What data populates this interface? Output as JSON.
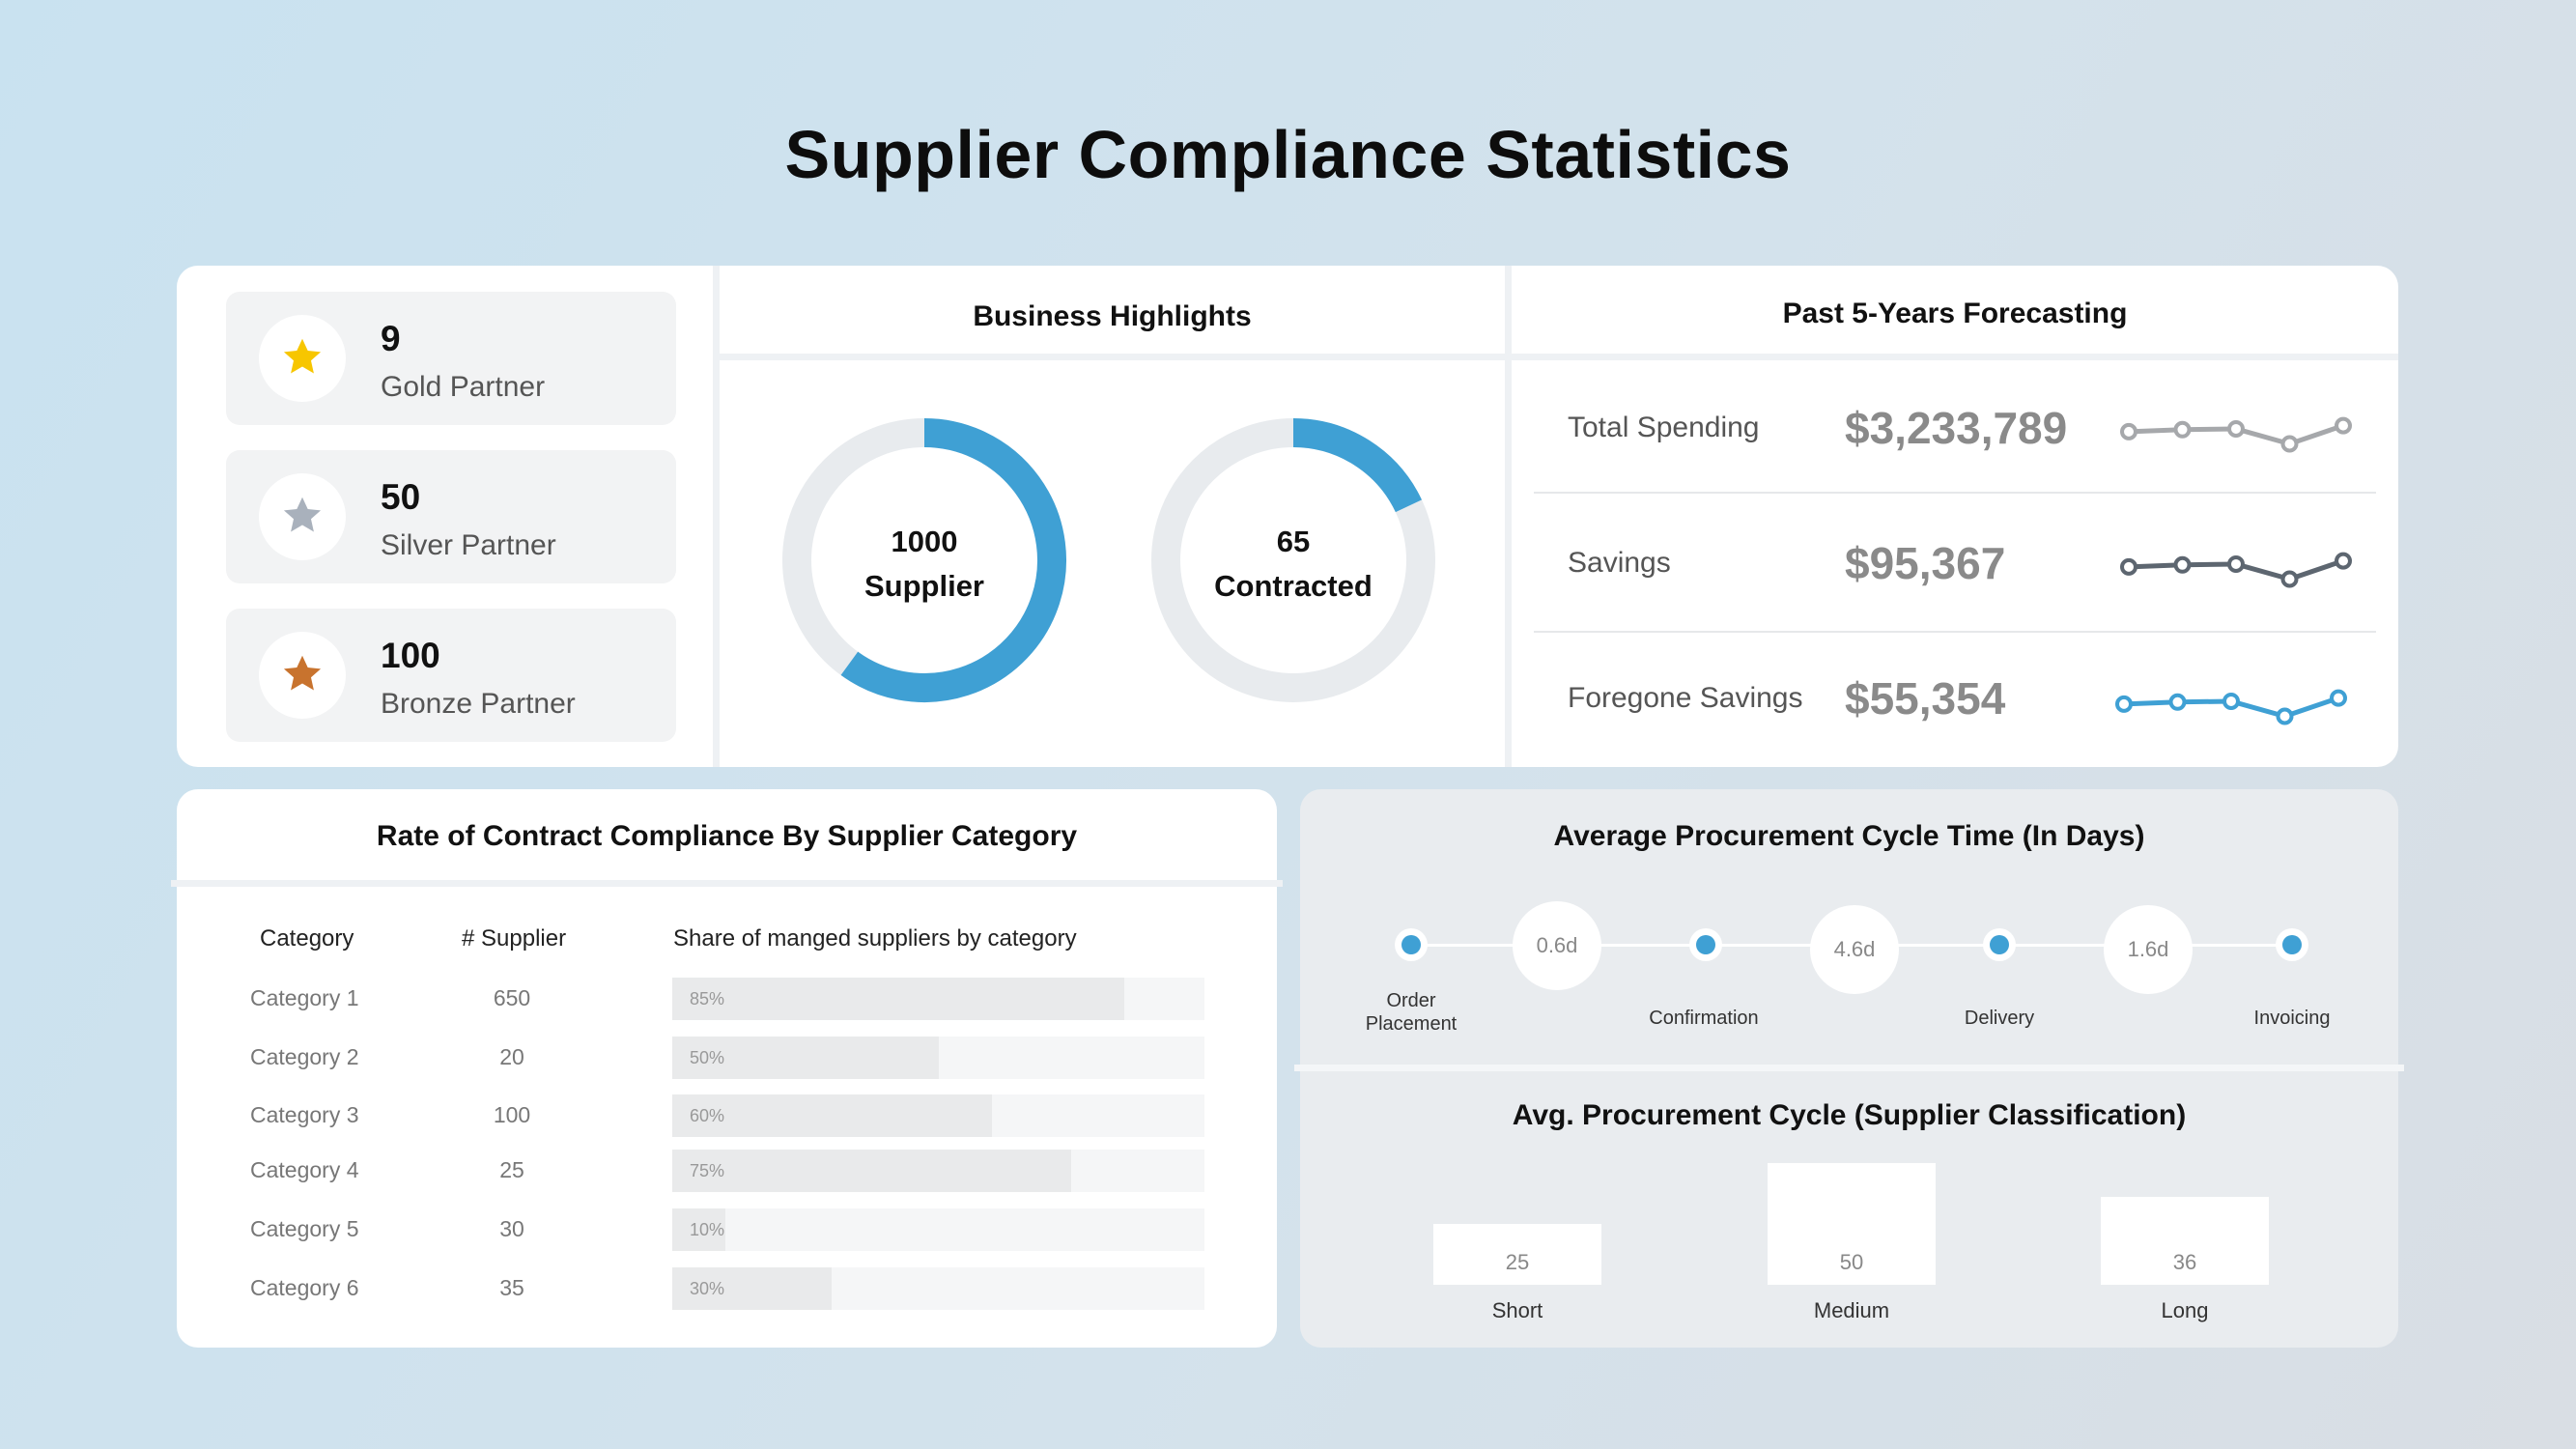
{
  "page": {
    "title": "Supplier Compliance Statistics"
  },
  "colors": {
    "accent": "#3fa0d4",
    "gold": "#f7c600",
    "silver": "#a9b1bc",
    "bronze": "#c8732e",
    "track": "#e8ebee",
    "spark_grey": "#a6a8ab",
    "spark_dark": "#5d6670"
  },
  "partners": [
    {
      "count": "9",
      "name": "Gold Partner",
      "icon": "star-icon",
      "tier": "gold"
    },
    {
      "count": "50",
      "name": "Silver Partner",
      "icon": "star-icon",
      "tier": "silver"
    },
    {
      "count": "100",
      "name": "Bronze Partner",
      "icon": "star-icon",
      "tier": "bronze"
    }
  ],
  "highlights": {
    "title": "Business Highlights",
    "donuts": [
      {
        "value": "1000",
        "label": "Supplier",
        "fill_fraction": 0.6
      },
      {
        "value": "65",
        "label": "Contracted",
        "fill_fraction": 0.18
      }
    ]
  },
  "forecast": {
    "title": "Past 5-Years Forecasting",
    "rows": [
      {
        "label": "Total Spending",
        "value": "$3,233,789",
        "trend": [
          0.55,
          0.6,
          0.62,
          0.25,
          0.7
        ],
        "color": "#a6a8ab"
      },
      {
        "label": "Savings",
        "value": "$95,367",
        "trend": [
          0.55,
          0.6,
          0.62,
          0.25,
          0.7
        ],
        "color": "#5d6670"
      },
      {
        "label": "Foregone Savings",
        "value": "$55,354",
        "trend": [
          0.55,
          0.6,
          0.62,
          0.25,
          0.7
        ],
        "color": "#3fa0d4"
      }
    ]
  },
  "compliance": {
    "title": "Rate of Contract Compliance By Supplier Category",
    "headers": {
      "category": "Category",
      "suppliers": "# Supplier",
      "share": "Share of manged suppliers by category"
    },
    "rows": [
      {
        "category": "Category 1",
        "suppliers": "650",
        "share": 85,
        "share_label": "85%"
      },
      {
        "category": "Category 2",
        "suppliers": "20",
        "share": 50,
        "share_label": "50%"
      },
      {
        "category": "Category 3",
        "suppliers": "100",
        "share": 60,
        "share_label": "60%"
      },
      {
        "category": "Category 4",
        "suppliers": "25",
        "share": 75,
        "share_label": "75%"
      },
      {
        "category": "Category 5",
        "suppliers": "30",
        "share": 10,
        "share_label": "10%"
      },
      {
        "category": "Category 6",
        "suppliers": "35",
        "share": 30,
        "share_label": "30%"
      }
    ]
  },
  "cycle": {
    "title": "Average Procurement Cycle Time (In Days)",
    "steps": [
      {
        "label": "Order\nPlacement"
      },
      {
        "label": "Confirmation"
      },
      {
        "label": "Delivery"
      },
      {
        "label": "Invoicing"
      }
    ],
    "durations": [
      "0.6d",
      "4.6d",
      "1.6d"
    ]
  },
  "chart_data": {
    "type": "bar",
    "title": "Avg. Procurement Cycle (Supplier Classification)",
    "categories": [
      "Short",
      "Medium",
      "Long"
    ],
    "values": [
      25,
      50,
      36
    ],
    "value_labels": [
      "25",
      "50",
      "36"
    ],
    "xlabel": "",
    "ylabel": "",
    "grid": false
  }
}
